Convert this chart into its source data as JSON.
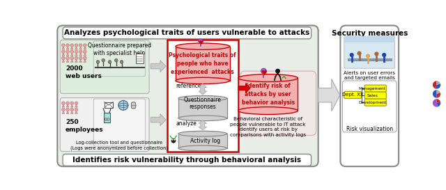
{
  "title_top": "Analyzes psychological traits of users vulnerable to attacks",
  "title_bottom": "Identifies risk vulnerability through behavioral analysis",
  "main_bg": "#e8ede8",
  "outer_bg": "#ffffff",
  "red_box_color": "#cc0000",
  "security_bg": "#ffffff",
  "users_text": "2000\nweb users",
  "employees_text": "250\nemployees",
  "questionnaire_label": "Questionnaire prepared\nwith specialist help",
  "log_label": "Log-collection tool and questionnaire\n(Logs were anonymized before collection)",
  "psych_traits_text": "Psychological traits of\npeople who have\nexperienced  attacks",
  "questionnaire_resp": "Questionnaire\nresponses",
  "activity_log": "Activity log",
  "reference_text": "reference",
  "analyze_text": "analyze",
  "identify_risk_text": "Identify risk of\nattacks by user\nbehavior analysis",
  "behavioral_text": "Behavioral characteristic of\npeople vulnerable to IT attack\nIdentify users at risk by\ncomparisons with activity logs",
  "security_title": "Security measures",
  "alerts_text": "Alerts on user errors\nand targeted emails",
  "risk_viz_text": "Risk visualization",
  "dept_label": "Dept. XX",
  "mgmt_label": "Management",
  "sales_label": "Sales",
  "dev_label": "Development",
  "yellow_fill": "#ffff00",
  "text_red": "#cc0000",
  "text_black": "#000000",
  "pink_person": "#e8a0a0",
  "top_section_bg": "#ddeedd",
  "bottom_section_bg": "#f0f0f0",
  "right_risk_bg": "#f0e8e8",
  "cyl_gray_fc": "#d0d0d0",
  "cyl_gray_ec": "#888888",
  "cyl_red_fc": "#f0b0b0",
  "cyl_red_ec": "#cc0000",
  "arrow_fc": "#cccccc",
  "arrow_ec": "#aaaaaa",
  "red_arrow_fc": "#dd0000",
  "red_arrow_ec": "#aa0000"
}
